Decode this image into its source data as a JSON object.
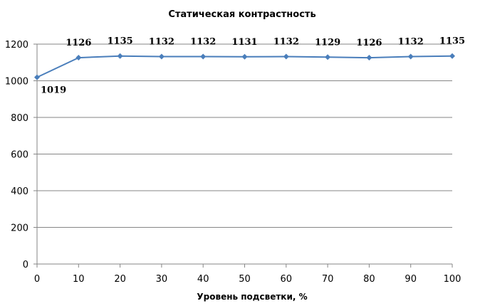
{
  "chart_data": {
    "type": "line",
    "title": "Статическая контрастность",
    "xlabel": "Уровень подсветки, %",
    "ylabel": "",
    "x": [
      0,
      10,
      20,
      30,
      40,
      50,
      60,
      70,
      80,
      90,
      100
    ],
    "series": [
      {
        "values": [
          1019,
          1126,
          1135,
          1132,
          1132,
          1131,
          1132,
          1129,
          1126,
          1132,
          1135
        ],
        "color": "#4a7ebb",
        "marker": "diamond",
        "data_labels": true
      }
    ],
    "xlim": [
      0,
      100
    ],
    "ylim": [
      0,
      1200
    ],
    "x_ticks": [
      0,
      10,
      20,
      30,
      40,
      50,
      60,
      70,
      80,
      90,
      100
    ],
    "y_ticks": [
      0,
      200,
      400,
      600,
      800,
      1000,
      1200
    ],
    "grid": "horizontal",
    "legend": "none"
  }
}
